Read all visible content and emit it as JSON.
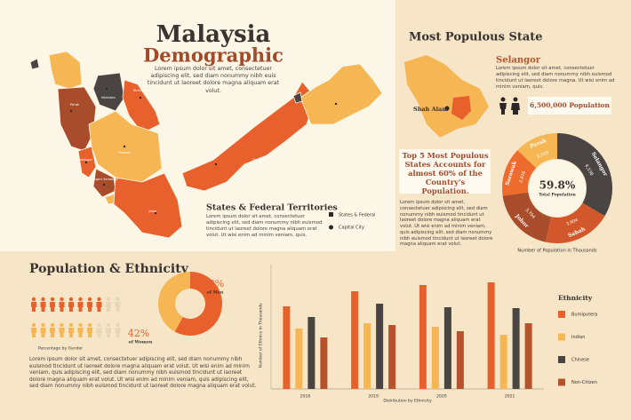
{
  "header": {
    "title": "Malaysia",
    "subtitle": "Demographic",
    "text": "Lorem ipsum dolor sit amet, consectetuer adipiscing elit, sed diam nonummy nibh euis tincidunt ut laoreet dolore magna aliquam erat volut."
  },
  "map": {
    "labels": [
      "Kelantan",
      "Terengganu",
      "Perak",
      "Pahang",
      "Selangor",
      "Negeri Sembilan",
      "Johor",
      "Sarawak"
    ],
    "section_title": "States & Federal Territories",
    "text": "Lorem ipsum dolor sit amet, consectetuer adipiscing elit, sed diam nonummy nibh euismod tincidunt ut laoreet dolore magna aliquam erat volut. Ut wisi enim ad minim veniam, quis.",
    "legend": [
      "States & Federal",
      "Capital City"
    ]
  },
  "populous": {
    "title": "Most Populous State",
    "state": "Selangor",
    "text": "Lorem ipsum dolor sit amet, consectetuer adipiscing elit, sed diam nonummy nibh euismod tincidunt ut laoreet dolore magna. Ut wisi enim ad minim veniam, quis.",
    "capital": "Shah Alam",
    "population": "6,500,000 Population",
    "highlight": "Top 5 Most Populous States Accounts for almost 60% of the Country's Population.",
    "text2": "Lorem ipsum dolor sit amet, consectetuer adipiscing elit, sed diam nonummy nibh euismod tincidunt ut laoreet dolore magna aliquam erat volut. Ut wisi enim ad minim veniam, quis adipiscing elit, sed diam nonummy nibh euismod tincidunt ut laoreet dolore magna aliquam erat volut."
  },
  "ethnicity": {
    "title": "Population & Ethnicity",
    "icons_caption": "Percentage by Gender",
    "text": "Lorem ipsum dolor sit amet, consectetuer adipiscing elit, sed diam nonummy nibh euismod tincidunt ut laoreet dolore magna aliquam erat volut. Ut wisi enim ad minim veniam, quis adipiscing elit, sed diam nonummy nibh euismod tincidunt ut laoreet dolore magna aliquam erat volut. Ut wisi enim ad minim veniam, quis adipiscing elit, sed diam nonummy nibh euismod tincidunt ut laoreet dolore magna aliquam erat volut."
  },
  "chart_data": [
    {
      "type": "donut",
      "categories": [
        "Selangor",
        "Sabah",
        "Johor",
        "Sarawak",
        "Perak"
      ],
      "values": [
        6538,
        3904,
        3794,
        2816,
        2509
      ],
      "value_labels": [
        "6,538",
        "3,904",
        "3,794",
        "2,816",
        "2,509"
      ],
      "colors": [
        "#4a4543",
        "#d2582c",
        "#a84c2c",
        "#ec6b2d",
        "#f6b654"
      ],
      "center_label": "59.8%",
      "center_text": "Total Population",
      "caption": "Number of Population in Thousands"
    },
    {
      "type": "donut",
      "categories": [
        "of Men",
        "of Women"
      ],
      "values": [
        58,
        42
      ],
      "value_labels": [
        "58%",
        "42%"
      ],
      "colors": [
        "#e8612c",
        "#f6b654"
      ]
    },
    {
      "type": "bar",
      "x_label": "Distribution by Ethnicity",
      "y_label": "Number of Ethnics in Thousands",
      "categories": [
        "2018",
        "2019",
        "2020",
        "2021"
      ],
      "ylim": [
        0,
        140
      ],
      "legend_title": "Ethnicity",
      "series": [
        {
          "name": "Bumiputera",
          "color": "#e8612c",
          "values": [
            93,
            110,
            117,
            120
          ]
        },
        {
          "name": "Indian",
          "color": "#f6b654",
          "values": [
            68,
            74,
            70,
            61
          ]
        },
        {
          "name": "Chinese",
          "color": "#4a4543",
          "values": [
            81,
            96,
            92,
            91
          ]
        },
        {
          "name": "Non-Citizen",
          "color": "#b5532c",
          "values": [
            58,
            72,
            65,
            74
          ]
        }
      ]
    }
  ]
}
